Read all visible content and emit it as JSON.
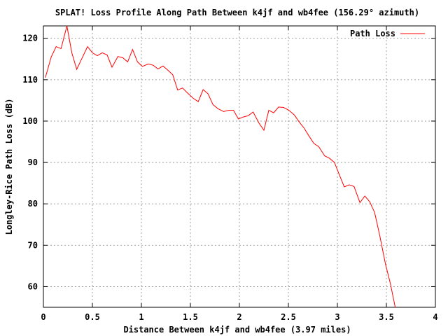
{
  "chart_data": {
    "type": "line",
    "title": "SPLAT! Loss Profile Along Path Between k4jf and wb4fee (156.29° azimuth)",
    "xlabel": "Distance Between k4jf and wb4fee (3.97 miles)",
    "ylabel": "Longley-Rice Path Loss (dB)",
    "xlim": [
      0,
      4
    ],
    "ylim": [
      55,
      123
    ],
    "x_ticks": [
      0,
      0.5,
      1,
      1.5,
      2,
      2.5,
      3,
      3.5,
      4
    ],
    "x_tick_labels": [
      "0",
      "0.5",
      "1",
      "1.5",
      "2",
      "2.5",
      "3",
      "3.5",
      "4"
    ],
    "y_ticks": [
      60,
      70,
      80,
      90,
      100,
      110,
      120
    ],
    "y_tick_labels": [
      "60",
      "70",
      "80",
      "90",
      "100",
      "110",
      "120"
    ],
    "grid": true,
    "legend_position": "top-right",
    "series": [
      {
        "name": "Path Loss",
        "color": "#ff0000",
        "x": [
          0.02,
          0.08,
          0.13,
          0.18,
          0.24,
          0.29,
          0.34,
          0.39,
          0.45,
          0.5,
          0.55,
          0.6,
          0.65,
          0.7,
          0.76,
          0.81,
          0.86,
          0.91,
          0.96,
          1.01,
          1.07,
          1.12,
          1.17,
          1.22,
          1.27,
          1.32,
          1.37,
          1.42,
          1.47,
          1.53,
          1.58,
          1.63,
          1.68,
          1.73,
          1.78,
          1.84,
          1.89,
          1.94,
          1.99,
          2.04,
          2.09,
          2.14,
          2.2,
          2.25,
          2.3,
          2.35,
          2.4,
          2.45,
          2.5,
          2.56,
          2.61,
          2.66,
          2.71,
          2.76,
          2.81,
          2.87,
          2.92,
          2.97,
          3.02,
          3.07,
          3.12,
          3.17,
          3.23,
          3.28,
          3.33,
          3.38,
          3.43,
          3.49,
          3.54,
          3.59,
          3.64,
          3.69,
          3.74,
          3.8,
          3.85,
          3.87
        ],
        "values": [
          110.5,
          115.5,
          118.0,
          117.5,
          123.0,
          116.5,
          112.5,
          115.0,
          118.0,
          116.5,
          115.8,
          116.5,
          116.0,
          113.0,
          115.6,
          115.3,
          114.3,
          117.3,
          114.3,
          113.2,
          113.8,
          113.5,
          112.6,
          113.3,
          112.3,
          111.2,
          107.5,
          108.0,
          106.8,
          105.5,
          104.7,
          107.6,
          106.6,
          104.0,
          103.0,
          102.3,
          102.6,
          102.6,
          100.5,
          101.0,
          101.3,
          102.2,
          99.5,
          97.8,
          102.6,
          102.0,
          103.4,
          103.3,
          102.7,
          101.5,
          99.8,
          98.3,
          96.4,
          94.6,
          93.8,
          91.6,
          91.0,
          90.0,
          87.0,
          84.1,
          84.6,
          84.2,
          80.3,
          81.9,
          80.5,
          77.9,
          72.6,
          65.5,
          60.8,
          55.0,
          54.0,
          54.0,
          54.0,
          54.0,
          54.0,
          54.0
        ]
      }
    ]
  }
}
